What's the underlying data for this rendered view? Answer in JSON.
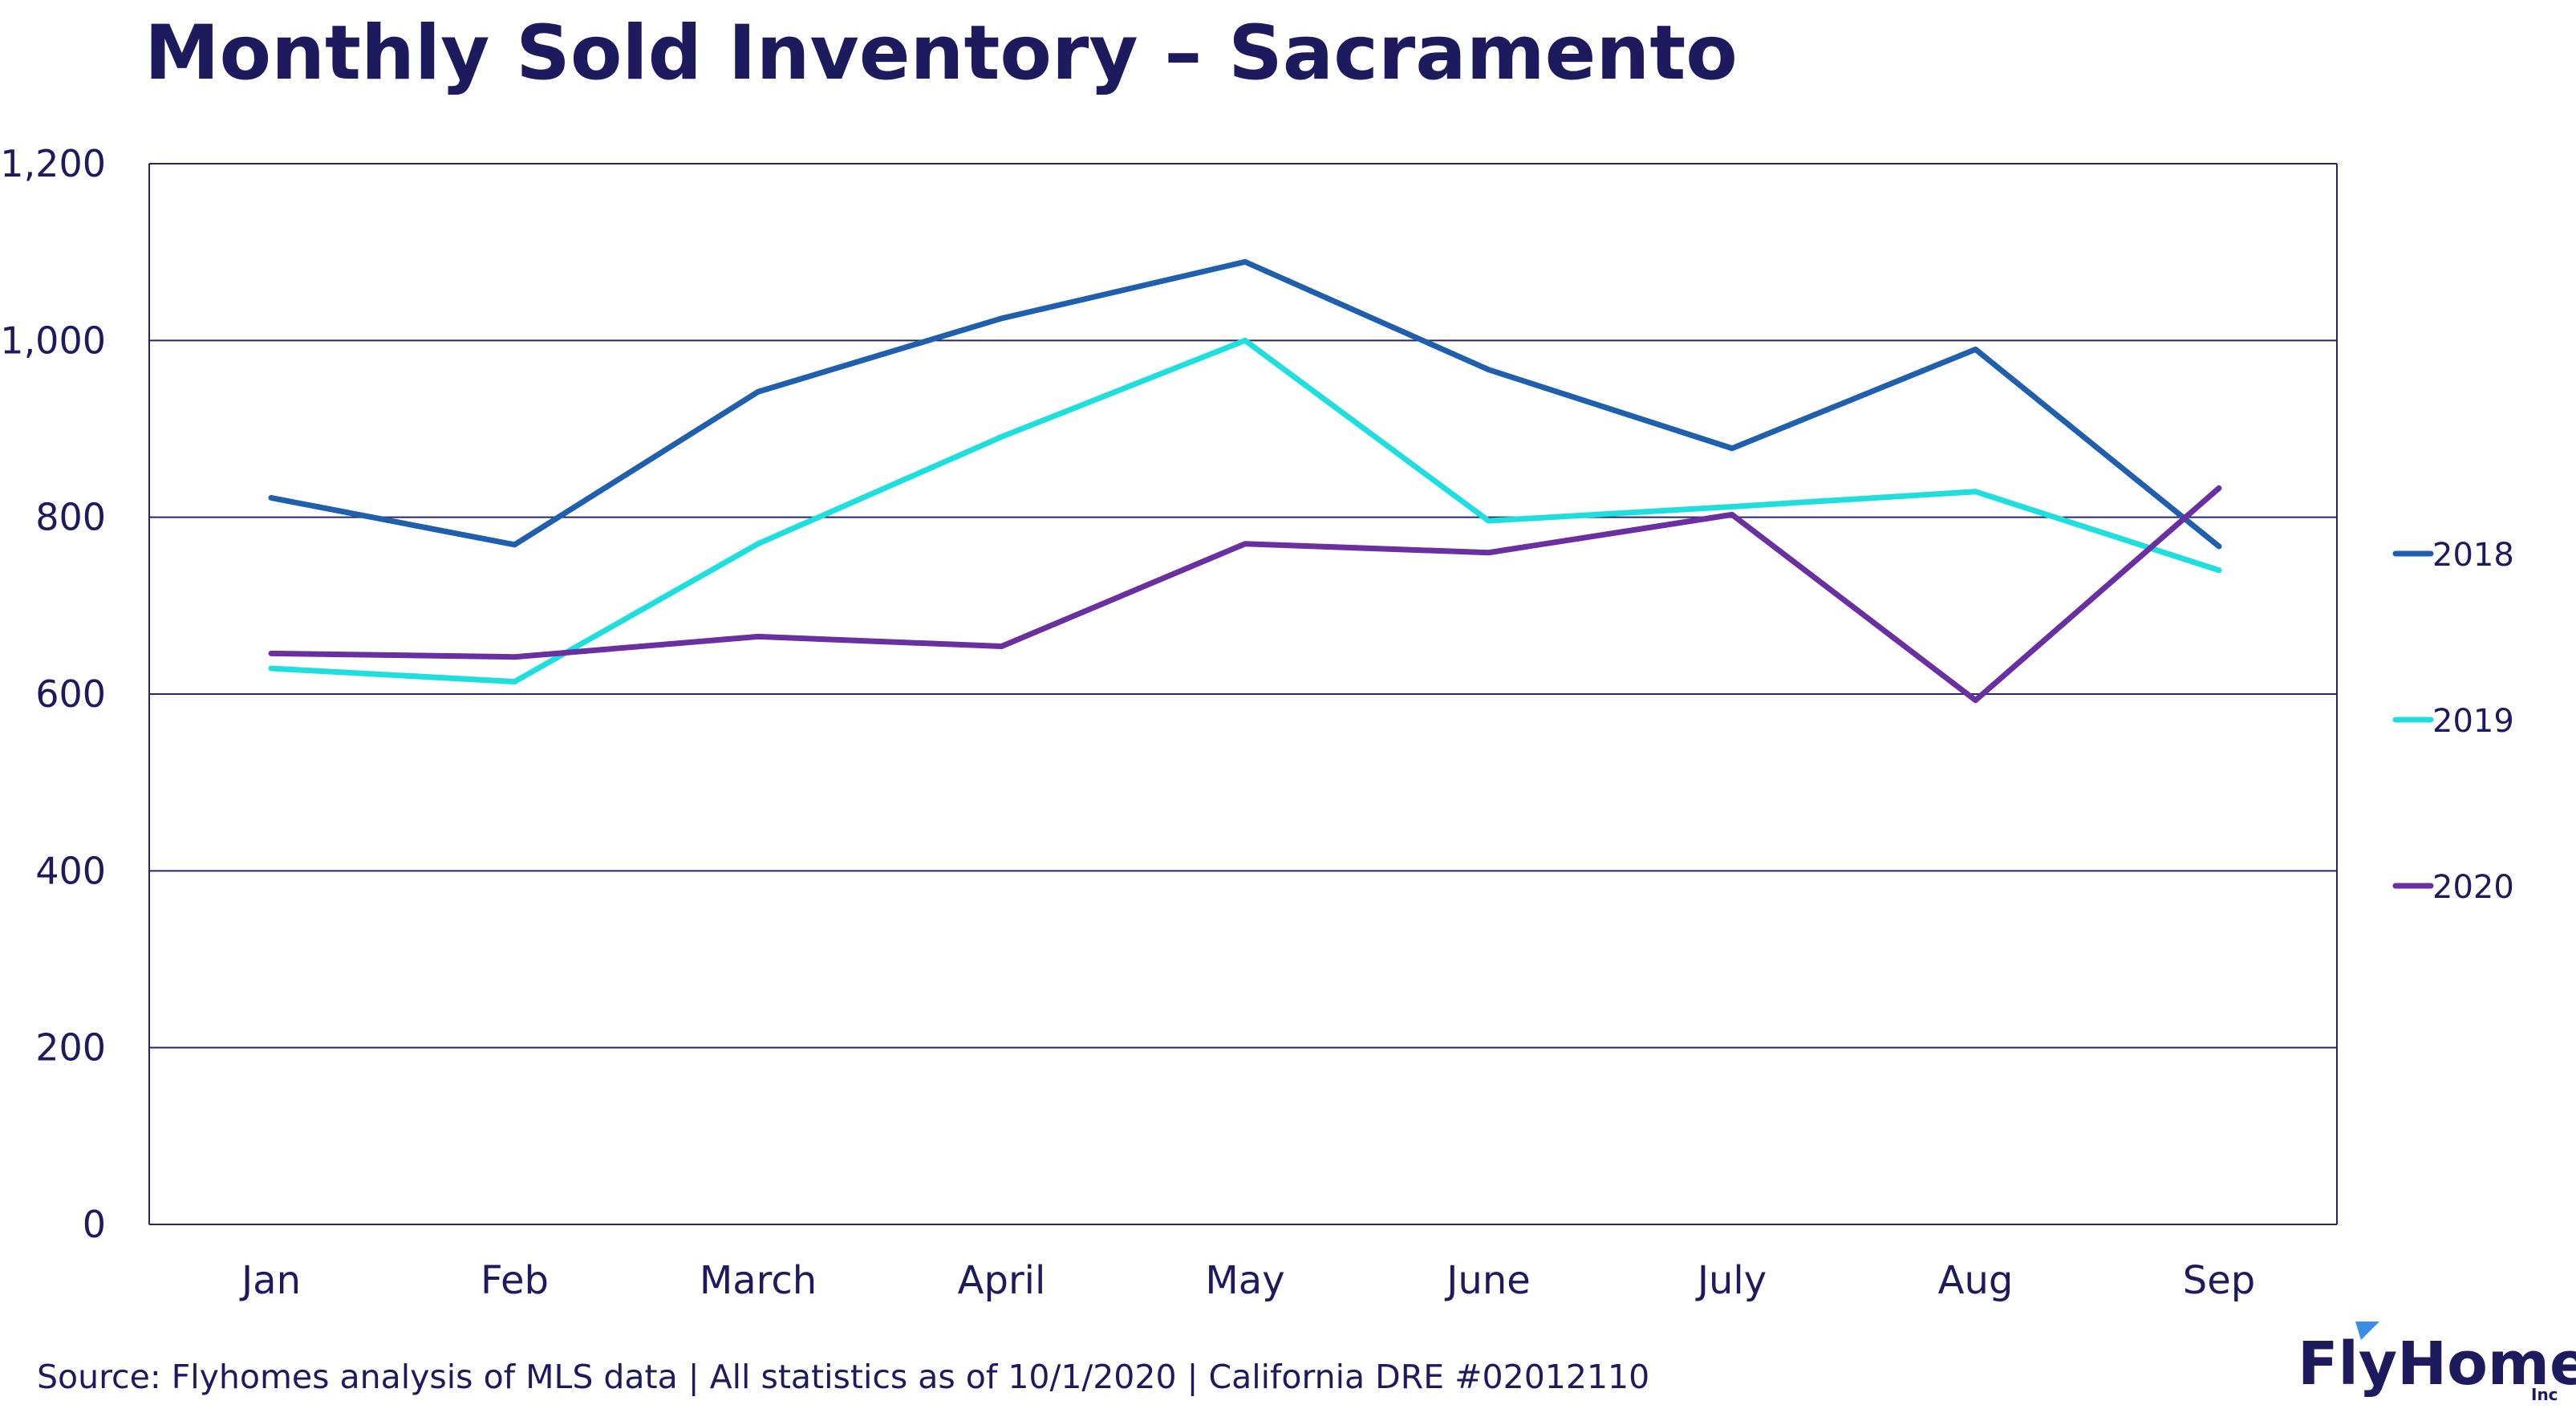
{
  "chart_data": {
    "type": "line",
    "title": "Monthly Sold Inventory – Sacramento",
    "xlabel": "",
    "ylabel": "",
    "categories": [
      "Jan",
      "Feb",
      "March",
      "April",
      "May",
      "June",
      "July",
      "Aug",
      "Sep"
    ],
    "ylim": [
      0,
      1200
    ],
    "yticks": [
      0,
      200,
      400,
      600,
      800,
      1000,
      1200
    ],
    "ytick_labels": [
      "0",
      "200",
      "400",
      "600",
      "800",
      "1,000",
      "1,200"
    ],
    "grid": true,
    "legend_position": "right",
    "series": [
      {
        "name": "2018",
        "color": "#1f5fae",
        "values": [
          822,
          769,
          942,
          1025,
          1089,
          967,
          878,
          990,
          767
        ]
      },
      {
        "name": "2019",
        "color": "#1fdede",
        "values": [
          629,
          614,
          770,
          891,
          1000,
          796,
          812,
          829,
          740
        ]
      },
      {
        "name": "2020",
        "color": "#6a2fa0",
        "values": [
          646,
          642,
          665,
          654,
          770,
          760,
          803,
          593,
          833
        ]
      }
    ]
  },
  "footer": {
    "source": "Source: Flyhomes analysis of MLS data | All statistics as of 10/1/2020 | California DRE #02012110"
  },
  "brand": {
    "logo_text": "FlyHomes",
    "logo_sub": "Inc",
    "logo_icon": "flag-icon"
  },
  "colors": {
    "title": "#1e1a5e",
    "axis_text": "#1e1a5e",
    "grid": "#27246a",
    "logo": "#1e1a5e",
    "logo_accent": "#3a8ee6"
  }
}
